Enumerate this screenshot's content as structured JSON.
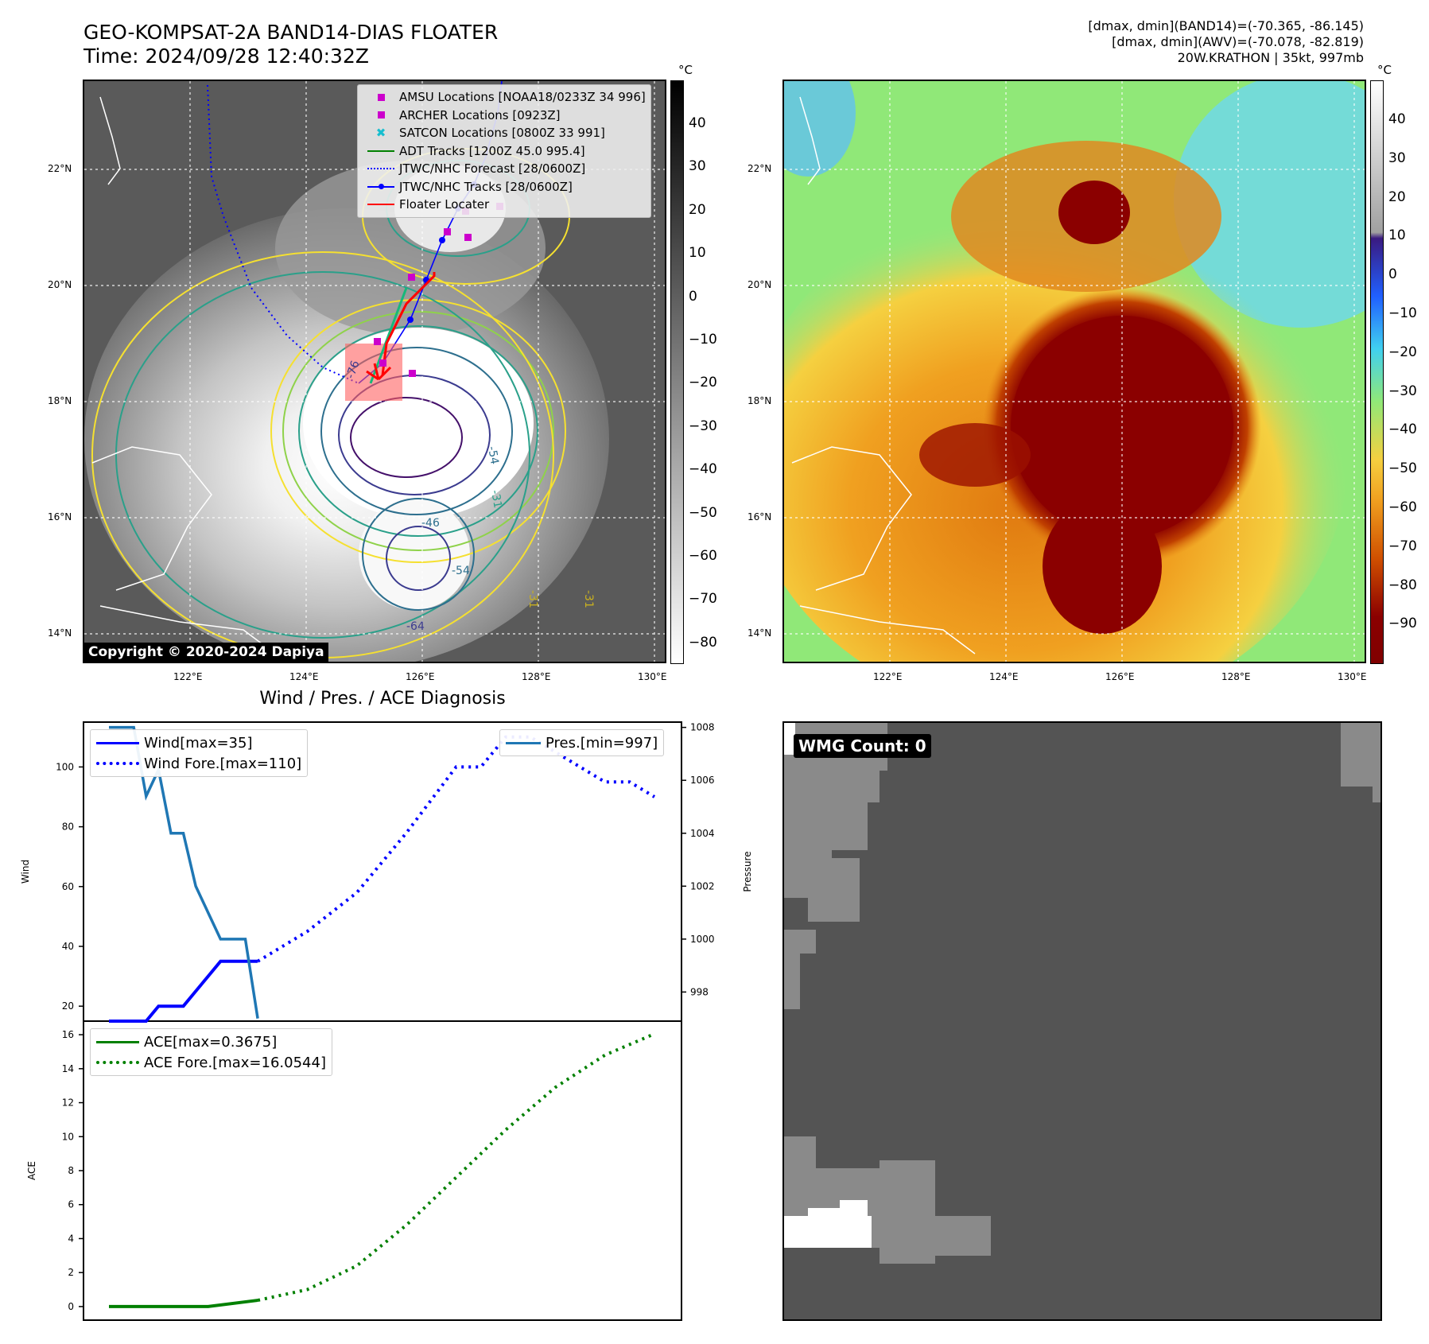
{
  "header": {
    "title_line1": "GEO-KOMPSAT-2A BAND14-DIAS FLOATER",
    "title_line2": "Time: 2024/09/28 12:40:32Z",
    "info_line1": "[dmax, dmin](BAND14)=(-70.365, -86.145)",
    "info_line2": "[dmax, dmin](AWV)=(-70.078, -82.819)",
    "info_line3": "20W.KRATHON | 35kt, 997mb"
  },
  "maps": {
    "lat_labels": [
      "22°N",
      "20°N",
      "18°N",
      "16°N",
      "14°N"
    ],
    "lon_labels": [
      "122°E",
      "124°E",
      "126°E",
      "128°E",
      "130°E"
    ],
    "copyright": "Copyright © 2020-2024 Dapiya",
    "cb_unit": "°C",
    "cb_left_ticks": [
      "40",
      "30",
      "20",
      "10",
      "0",
      "−10",
      "−20",
      "−30",
      "−40",
      "−50",
      "−60",
      "−70",
      "−80"
    ],
    "cb_right_ticks": [
      "40",
      "30",
      "20",
      "10",
      "0",
      "−10",
      "−20",
      "−30",
      "−40",
      "−50",
      "−60",
      "−70",
      "−80",
      "−90"
    ],
    "contour_labels": [
      "-31",
      "-54",
      "-64",
      "-76",
      "-31",
      "-54",
      "-46",
      "-31"
    ],
    "legend": [
      {
        "label": "AMSU Locations [NOAA18/0233Z 34 996]",
        "color": "#cc00cc",
        "kind": "square"
      },
      {
        "label": "ARCHER Locations [0923Z]",
        "color": "#cc00cc",
        "kind": "square"
      },
      {
        "label": "SATCON Locations [0800Z 33 991]",
        "color": "#17becf",
        "kind": "x"
      },
      {
        "label": "ADT Tracks [1200Z 45.0 995.4]",
        "color": "#008000",
        "kind": "line"
      },
      {
        "label": "JTWC/NHC Forecast [28/0600Z]",
        "color": "#0000ff",
        "kind": "dotted"
      },
      {
        "label": "JTWC/NHC Tracks [28/0600Z]",
        "color": "#0000ff",
        "kind": "linedot"
      },
      {
        "label": "Floater Locater",
        "color": "#ff0000",
        "kind": "line"
      }
    ]
  },
  "diag": {
    "title": "Wind / Pres. / ACE Diagnosis",
    "wind_ylabel": "Wind",
    "pres_ylabel": "Pressure",
    "ace_ylabel": "ACE",
    "legend_wind": "Wind[max=35]",
    "legend_wind_fore": "Wind Fore.[max=110]",
    "legend_pres": "Pres.[min=997]",
    "legend_ace": "ACE[max=0.3675]",
    "legend_ace_fore": "ACE Fore.[max=16.0544]",
    "wmg_label": "WMG Count: 0"
  },
  "chart_data": [
    {
      "type": "line",
      "name": "wind_pressure",
      "ylabel": "Wind",
      "y2label": "Pressure",
      "ylim": [
        15,
        115
      ],
      "y2lim": [
        996.9,
        1008.2
      ],
      "wind_ticks": [
        20,
        40,
        60,
        80,
        100
      ],
      "pres_ticks": [
        998,
        1000,
        1002,
        1004,
        1006,
        1008
      ],
      "series": [
        {
          "name": "Wind[max=35]",
          "color": "#0000ff",
          "style": "solid",
          "x": [
            0,
            3,
            4,
            5,
            6,
            7,
            8,
            9,
            10,
            11,
            12
          ],
          "y": [
            15,
            15,
            20,
            20,
            20,
            25,
            30,
            35,
            35,
            35,
            35
          ]
        },
        {
          "name": "Wind Fore.[max=110]",
          "color": "#0000ff",
          "style": "dotted",
          "x": [
            12,
            16,
            20,
            24,
            28,
            30,
            32,
            34,
            36,
            38,
            40,
            42,
            44
          ],
          "y": [
            35,
            45,
            58,
            78,
            100,
            100,
            110,
            110,
            105,
            100,
            95,
            95,
            90
          ]
        },
        {
          "name": "Pres.[min=997]",
          "color": "#1f77b4",
          "style": "solid",
          "axis": "y2",
          "x": [
            0,
            2,
            3,
            4,
            5,
            6,
            7,
            8,
            9,
            10,
            11,
            12
          ],
          "y": [
            1008,
            1008,
            1005.4,
            1006.4,
            1004,
            1004,
            1002,
            1001,
            1000,
            1000,
            1000,
            997
          ]
        }
      ]
    },
    {
      "type": "line",
      "name": "ace",
      "ylabel": "ACE",
      "ylim": [
        -0.8,
        16.8
      ],
      "ace_ticks": [
        0,
        2,
        4,
        6,
        8,
        10,
        12,
        14,
        16
      ],
      "series": [
        {
          "name": "ACE[max=0.3675]",
          "color": "#008000",
          "style": "solid",
          "x": [
            0,
            4,
            8,
            12
          ],
          "y": [
            0,
            0,
            0,
            0.3675
          ]
        },
        {
          "name": "ACE Fore.[max=16.0544]",
          "color": "#008000",
          "style": "dotted",
          "x": [
            12,
            16,
            20,
            24,
            28,
            32,
            36,
            40,
            44
          ],
          "y": [
            0.3675,
            1.0,
            2.4,
            4.8,
            7.6,
            10.4,
            12.9,
            14.8,
            16.05
          ]
        }
      ]
    }
  ]
}
